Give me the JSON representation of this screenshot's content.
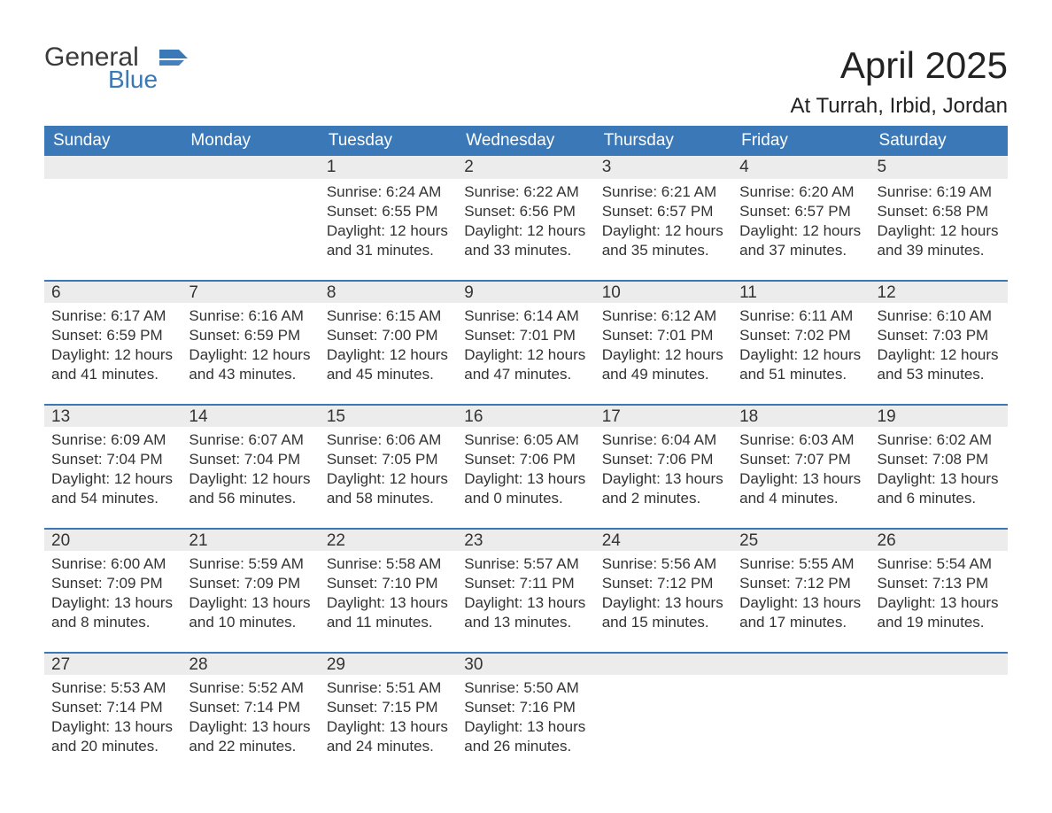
{
  "brand": {
    "text_top": "General",
    "text_bottom": "Blue",
    "color_top": "#3a3a3a",
    "color_bottom": "#3b78b8",
    "flag_color": "#3b78b8"
  },
  "title": {
    "month": "April 2025",
    "location": "At Turrah, Irbid, Jordan"
  },
  "colors": {
    "header_bg": "#3b78b8",
    "header_text": "#ffffff",
    "daynum_bg": "#ececec",
    "row_border": "#3b78b8",
    "text": "#333333",
    "background": "#ffffff"
  },
  "fonts": {
    "family": "Arial",
    "title_size_pt": 32,
    "location_size_pt": 18,
    "header_size_pt": 14,
    "daynum_size_pt": 14,
    "body_size_pt": 13
  },
  "day_labels": [
    "Sunday",
    "Monday",
    "Tuesday",
    "Wednesday",
    "Thursday",
    "Friday",
    "Saturday"
  ],
  "weeks": [
    [
      {
        "num": "",
        "sunrise": "",
        "sunset": "",
        "daylight1": "",
        "daylight2": ""
      },
      {
        "num": "",
        "sunrise": "",
        "sunset": "",
        "daylight1": "",
        "daylight2": ""
      },
      {
        "num": "1",
        "sunrise": "Sunrise: 6:24 AM",
        "sunset": "Sunset: 6:55 PM",
        "daylight1": "Daylight: 12 hours",
        "daylight2": "and 31 minutes."
      },
      {
        "num": "2",
        "sunrise": "Sunrise: 6:22 AM",
        "sunset": "Sunset: 6:56 PM",
        "daylight1": "Daylight: 12 hours",
        "daylight2": "and 33 minutes."
      },
      {
        "num": "3",
        "sunrise": "Sunrise: 6:21 AM",
        "sunset": "Sunset: 6:57 PM",
        "daylight1": "Daylight: 12 hours",
        "daylight2": "and 35 minutes."
      },
      {
        "num": "4",
        "sunrise": "Sunrise: 6:20 AM",
        "sunset": "Sunset: 6:57 PM",
        "daylight1": "Daylight: 12 hours",
        "daylight2": "and 37 minutes."
      },
      {
        "num": "5",
        "sunrise": "Sunrise: 6:19 AM",
        "sunset": "Sunset: 6:58 PM",
        "daylight1": "Daylight: 12 hours",
        "daylight2": "and 39 minutes."
      }
    ],
    [
      {
        "num": "6",
        "sunrise": "Sunrise: 6:17 AM",
        "sunset": "Sunset: 6:59 PM",
        "daylight1": "Daylight: 12 hours",
        "daylight2": "and 41 minutes."
      },
      {
        "num": "7",
        "sunrise": "Sunrise: 6:16 AM",
        "sunset": "Sunset: 6:59 PM",
        "daylight1": "Daylight: 12 hours",
        "daylight2": "and 43 minutes."
      },
      {
        "num": "8",
        "sunrise": "Sunrise: 6:15 AM",
        "sunset": "Sunset: 7:00 PM",
        "daylight1": "Daylight: 12 hours",
        "daylight2": "and 45 minutes."
      },
      {
        "num": "9",
        "sunrise": "Sunrise: 6:14 AM",
        "sunset": "Sunset: 7:01 PM",
        "daylight1": "Daylight: 12 hours",
        "daylight2": "and 47 minutes."
      },
      {
        "num": "10",
        "sunrise": "Sunrise: 6:12 AM",
        "sunset": "Sunset: 7:01 PM",
        "daylight1": "Daylight: 12 hours",
        "daylight2": "and 49 minutes."
      },
      {
        "num": "11",
        "sunrise": "Sunrise: 6:11 AM",
        "sunset": "Sunset: 7:02 PM",
        "daylight1": "Daylight: 12 hours",
        "daylight2": "and 51 minutes."
      },
      {
        "num": "12",
        "sunrise": "Sunrise: 6:10 AM",
        "sunset": "Sunset: 7:03 PM",
        "daylight1": "Daylight: 12 hours",
        "daylight2": "and 53 minutes."
      }
    ],
    [
      {
        "num": "13",
        "sunrise": "Sunrise: 6:09 AM",
        "sunset": "Sunset: 7:04 PM",
        "daylight1": "Daylight: 12 hours",
        "daylight2": "and 54 minutes."
      },
      {
        "num": "14",
        "sunrise": "Sunrise: 6:07 AM",
        "sunset": "Sunset: 7:04 PM",
        "daylight1": "Daylight: 12 hours",
        "daylight2": "and 56 minutes."
      },
      {
        "num": "15",
        "sunrise": "Sunrise: 6:06 AM",
        "sunset": "Sunset: 7:05 PM",
        "daylight1": "Daylight: 12 hours",
        "daylight2": "and 58 minutes."
      },
      {
        "num": "16",
        "sunrise": "Sunrise: 6:05 AM",
        "sunset": "Sunset: 7:06 PM",
        "daylight1": "Daylight: 13 hours",
        "daylight2": "and 0 minutes."
      },
      {
        "num": "17",
        "sunrise": "Sunrise: 6:04 AM",
        "sunset": "Sunset: 7:06 PM",
        "daylight1": "Daylight: 13 hours",
        "daylight2": "and 2 minutes."
      },
      {
        "num": "18",
        "sunrise": "Sunrise: 6:03 AM",
        "sunset": "Sunset: 7:07 PM",
        "daylight1": "Daylight: 13 hours",
        "daylight2": "and 4 minutes."
      },
      {
        "num": "19",
        "sunrise": "Sunrise: 6:02 AM",
        "sunset": "Sunset: 7:08 PM",
        "daylight1": "Daylight: 13 hours",
        "daylight2": "and 6 minutes."
      }
    ],
    [
      {
        "num": "20",
        "sunrise": "Sunrise: 6:00 AM",
        "sunset": "Sunset: 7:09 PM",
        "daylight1": "Daylight: 13 hours",
        "daylight2": "and 8 minutes."
      },
      {
        "num": "21",
        "sunrise": "Sunrise: 5:59 AM",
        "sunset": "Sunset: 7:09 PM",
        "daylight1": "Daylight: 13 hours",
        "daylight2": "and 10 minutes."
      },
      {
        "num": "22",
        "sunrise": "Sunrise: 5:58 AM",
        "sunset": "Sunset: 7:10 PM",
        "daylight1": "Daylight: 13 hours",
        "daylight2": "and 11 minutes."
      },
      {
        "num": "23",
        "sunrise": "Sunrise: 5:57 AM",
        "sunset": "Sunset: 7:11 PM",
        "daylight1": "Daylight: 13 hours",
        "daylight2": "and 13 minutes."
      },
      {
        "num": "24",
        "sunrise": "Sunrise: 5:56 AM",
        "sunset": "Sunset: 7:12 PM",
        "daylight1": "Daylight: 13 hours",
        "daylight2": "and 15 minutes."
      },
      {
        "num": "25",
        "sunrise": "Sunrise: 5:55 AM",
        "sunset": "Sunset: 7:12 PM",
        "daylight1": "Daylight: 13 hours",
        "daylight2": "and 17 minutes."
      },
      {
        "num": "26",
        "sunrise": "Sunrise: 5:54 AM",
        "sunset": "Sunset: 7:13 PM",
        "daylight1": "Daylight: 13 hours",
        "daylight2": "and 19 minutes."
      }
    ],
    [
      {
        "num": "27",
        "sunrise": "Sunrise: 5:53 AM",
        "sunset": "Sunset: 7:14 PM",
        "daylight1": "Daylight: 13 hours",
        "daylight2": "and 20 minutes."
      },
      {
        "num": "28",
        "sunrise": "Sunrise: 5:52 AM",
        "sunset": "Sunset: 7:14 PM",
        "daylight1": "Daylight: 13 hours",
        "daylight2": "and 22 minutes."
      },
      {
        "num": "29",
        "sunrise": "Sunrise: 5:51 AM",
        "sunset": "Sunset: 7:15 PM",
        "daylight1": "Daylight: 13 hours",
        "daylight2": "and 24 minutes."
      },
      {
        "num": "30",
        "sunrise": "Sunrise: 5:50 AM",
        "sunset": "Sunset: 7:16 PM",
        "daylight1": "Daylight: 13 hours",
        "daylight2": "and 26 minutes."
      },
      {
        "num": "",
        "sunrise": "",
        "sunset": "",
        "daylight1": "",
        "daylight2": ""
      },
      {
        "num": "",
        "sunrise": "",
        "sunset": "",
        "daylight1": "",
        "daylight2": ""
      },
      {
        "num": "",
        "sunrise": "",
        "sunset": "",
        "daylight1": "",
        "daylight2": ""
      }
    ]
  ]
}
